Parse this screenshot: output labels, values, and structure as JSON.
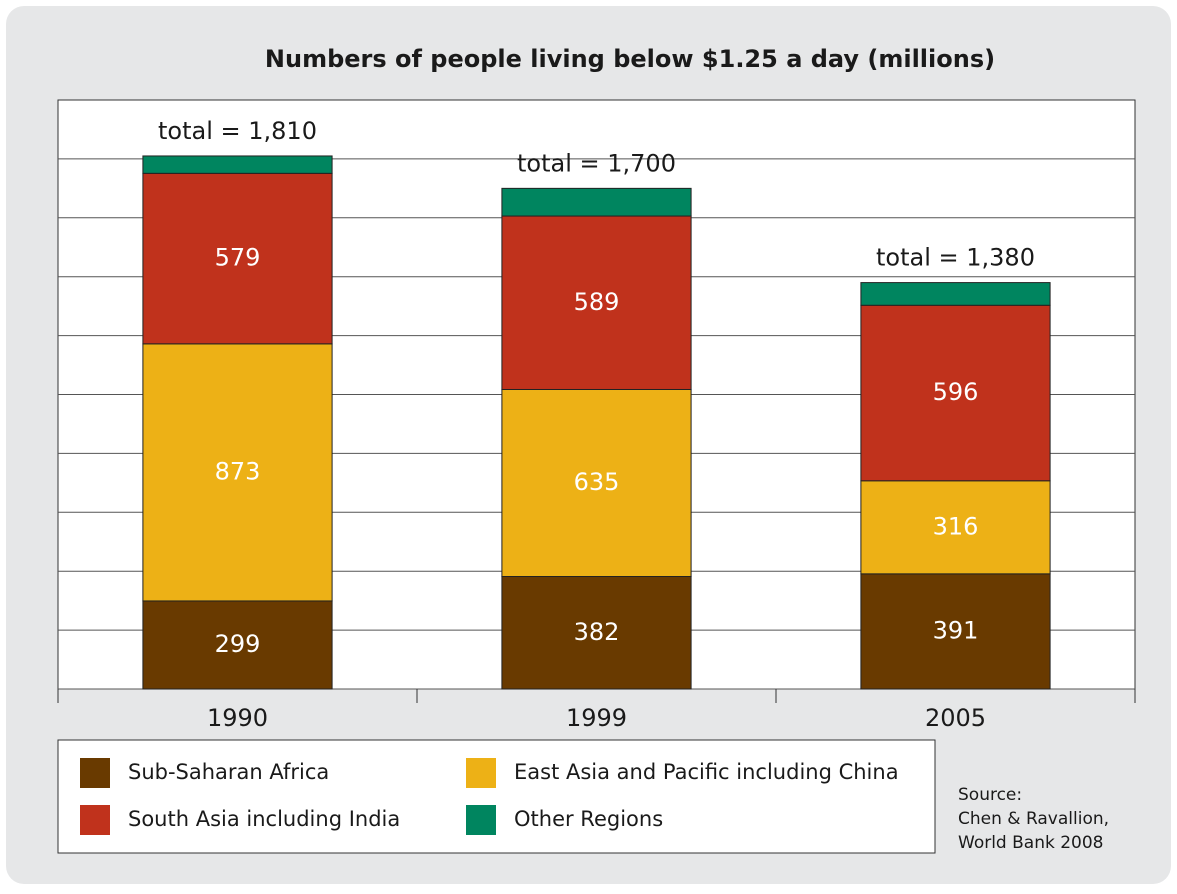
{
  "chart_data": {
    "type": "stacked_bar",
    "title": "Numbers of people living below $1.25 a day (millions)",
    "categories": [
      "1990",
      "1999",
      "2005"
    ],
    "series": [
      {
        "name": "Sub-Saharan Africa",
        "color": "#693a00",
        "values": [
          299,
          382,
          391
        ]
      },
      {
        "name": "East Asia and Pacific including China",
        "color": "#edb116",
        "values": [
          873,
          635,
          316
        ]
      },
      {
        "name": "South Asia including India",
        "color": "#c0321c",
        "values": [
          579,
          589,
          596
        ]
      },
      {
        "name": "Other Regions",
        "color": "#00855f",
        "values": [
          59,
          94,
          77
        ]
      }
    ],
    "annotations": [
      "total = 1,810",
      "total = 1,700",
      "total = 1,380"
    ],
    "ylim": [
      0,
      2000
    ],
    "yticks": [
      0,
      200,
      400,
      600,
      800,
      1000,
      1200,
      1400,
      1600,
      1800
    ],
    "grid": true,
    "source": [
      "Source:",
      "Chen & Ravallion,",
      "World Bank 2008"
    ]
  }
}
